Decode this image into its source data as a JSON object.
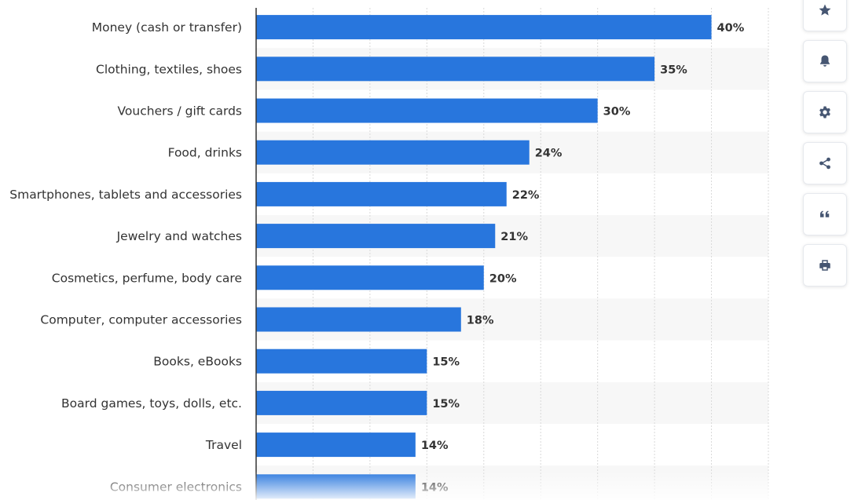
{
  "chart_data": {
    "type": "bar",
    "orientation": "horizontal",
    "categories": [
      "Money (cash or transfer)",
      "Clothing, textiles, shoes",
      "Vouchers / gift cards",
      "Food, drinks",
      "Smartphones, tablets and accessories",
      "Jewelry and watches",
      "Cosmetics, perfume, body care",
      "Computer, computer accessories",
      "Books, eBooks",
      "Board games, toys, dolls, etc.",
      "Travel",
      "Consumer electronics"
    ],
    "values": [
      40,
      35,
      30,
      24,
      22,
      21,
      20,
      18,
      15,
      15,
      14,
      14
    ],
    "value_labels": [
      "40%",
      "35%",
      "30%",
      "24%",
      "22%",
      "21%",
      "20%",
      "18%",
      "15%",
      "15%",
      "14%",
      "14%"
    ],
    "xlim": [
      0,
      45
    ],
    "grid": true,
    "bar_color": "#2876dd"
  },
  "toolbar": {
    "icons": [
      "star-icon",
      "bell-icon",
      "gear-icon",
      "share-icon",
      "quote-icon",
      "print-icon"
    ],
    "icon_color": "#465672"
  }
}
